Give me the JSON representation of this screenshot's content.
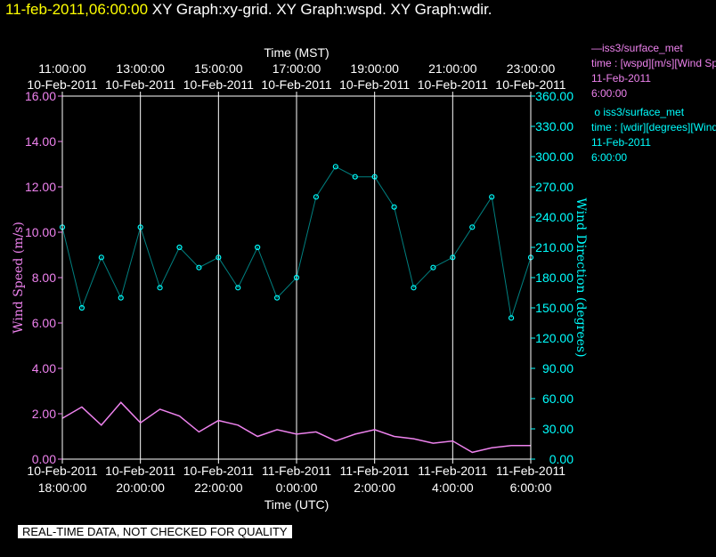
{
  "title": {
    "timestamp": "11-feb-2011,06:00:00",
    "rest": "XY Graph:xy-grid.  XY Graph:wspd.  XY Graph:wdir."
  },
  "chart_data": {
    "type": "line",
    "top_axis_label": "Time (MST)",
    "bottom_axis_label": "Time (UTC)",
    "ylabel_left": "Wind Speed (m/s)",
    "ylabel_right": "Wind Direction (degrees)",
    "ylim_left": [
      0,
      16
    ],
    "ylim_right": [
      0,
      360
    ],
    "left_ticks": [
      "0.00",
      "2.00",
      "4.00",
      "6.00",
      "8.00",
      "10.00",
      "12.00",
      "14.00",
      "16.00"
    ],
    "right_ticks": [
      "0.00",
      "30.00",
      "60.00",
      "90.00",
      "120.00",
      "150.00",
      "180.00",
      "210.00",
      "240.00",
      "270.00",
      "300.00",
      "330.00",
      "360.00"
    ],
    "x_range_hours_utc": [
      18,
      30
    ],
    "top_ticks": [
      {
        "hour": 18,
        "time": "11:00:00",
        "date": "10-Feb-2011"
      },
      {
        "hour": 20,
        "time": "13:00:00",
        "date": "10-Feb-2011"
      },
      {
        "hour": 22,
        "time": "15:00:00",
        "date": "10-Feb-2011"
      },
      {
        "hour": 24,
        "time": "17:00:00",
        "date": "10-Feb-2011"
      },
      {
        "hour": 26,
        "time": "19:00:00",
        "date": "10-Feb-2011"
      },
      {
        "hour": 28,
        "time": "21:00:00",
        "date": "10-Feb-2011"
      },
      {
        "hour": 30,
        "time": "23:00:00",
        "date": "10-Feb-2011"
      }
    ],
    "bottom_ticks": [
      {
        "hour": 18,
        "date": "10-Feb-2011",
        "time": "18:00:00"
      },
      {
        "hour": 20,
        "date": "10-Feb-2011",
        "time": "20:00:00"
      },
      {
        "hour": 22,
        "date": "10-Feb-2011",
        "time": "22:00:00"
      },
      {
        "hour": 24,
        "date": "11-Feb-2011",
        "time": "0:00:00"
      },
      {
        "hour": 26,
        "date": "11-Feb-2011",
        "time": "2:00:00"
      },
      {
        "hour": 28,
        "date": "11-Feb-2011",
        "time": "4:00:00"
      },
      {
        "hour": 30,
        "date": "11-Feb-2011",
        "time": "6:00:00"
      }
    ],
    "grid": true,
    "series": [
      {
        "name": "iss3/surface_met",
        "axis": "left",
        "style": "line",
        "color": "#ee82ee",
        "x": [
          18.0,
          18.5,
          19.0,
          19.5,
          20.0,
          20.5,
          21.0,
          21.5,
          22.0,
          22.5,
          23.0,
          23.5,
          24.0,
          24.5,
          25.0,
          25.5,
          26.0,
          26.5,
          27.0,
          27.5,
          28.0,
          28.5,
          29.0,
          29.5,
          30.0
        ],
        "y": [
          1.8,
          2.3,
          1.5,
          2.5,
          1.6,
          2.2,
          1.9,
          1.2,
          1.7,
          1.5,
          1.0,
          1.3,
          1.1,
          1.2,
          0.8,
          1.1,
          1.3,
          1.0,
          0.9,
          0.7,
          0.8,
          0.3,
          0.5,
          0.6,
          0.6
        ]
      },
      {
        "name": "iss3/surface_met",
        "axis": "right",
        "style": "markers",
        "color": "#00ffff",
        "x": [
          18.0,
          18.5,
          19.0,
          19.5,
          20.0,
          20.5,
          21.0,
          21.5,
          22.0,
          22.5,
          23.0,
          23.5,
          24.0,
          24.5,
          25.0,
          25.5,
          26.0,
          26.5,
          27.0,
          27.5,
          28.0,
          28.5,
          29.0,
          29.5,
          30.0
        ],
        "y": [
          230,
          150,
          200,
          160,
          230,
          170,
          210,
          190,
          200,
          170,
          210,
          160,
          180,
          260,
          290,
          280,
          280,
          250,
          170,
          190,
          200,
          230,
          260,
          140,
          200
        ]
      }
    ],
    "legend": [
      {
        "name": "iss3/surface_met",
        "detail": "time : [wspd][m/s][Wind Speed]",
        "date": "11-Feb-2011",
        "time": "6:00:00"
      },
      {
        "name": "iss3/surface_met",
        "detail": "time : [wdir][degrees][Wind Direction]",
        "date": "11-Feb-2011",
        "time": "6:00:00"
      }
    ],
    "legend_placement": "right"
  },
  "colors": {
    "background": "#000000",
    "axis": "#ffffff",
    "speed": "#ee82ee",
    "direction": "#00ffff",
    "timestamp": "#ffff00"
  },
  "notice": "REAL-TIME DATA, NOT CHECKED FOR QUALITY"
}
